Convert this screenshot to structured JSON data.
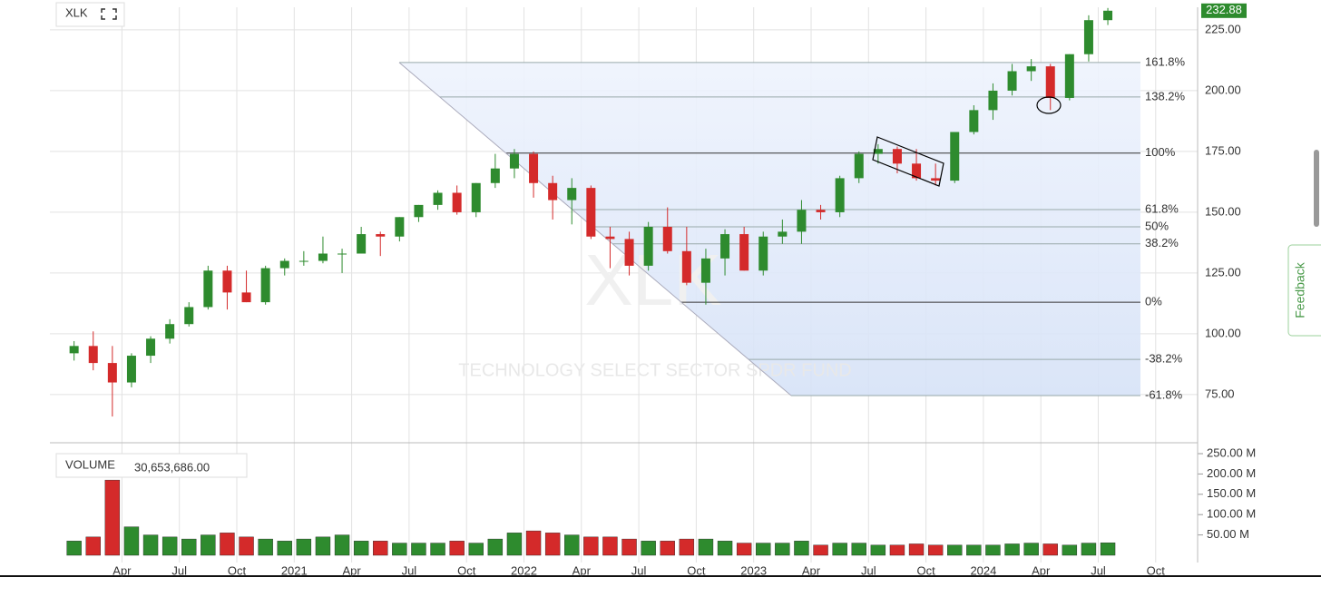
{
  "chart_data": {
    "type": "candlestick",
    "title": "XLK",
    "watermark": "XLK",
    "watermark_subtitle": "TECHNOLOGY SELECT SECTOR SPDR FUND",
    "feedback": "Feedback",
    "last_price": 232.88,
    "up_color": "#2e8b2e",
    "down_color": "#d42a2a",
    "x": [
      "2020-01",
      "2020-02",
      "2020-03",
      "2020-04",
      "2020-05",
      "2020-06",
      "2020-07",
      "2020-08",
      "2020-09",
      "2020-10",
      "2020-11",
      "2020-12",
      "2021-01",
      "2021-02",
      "2021-03",
      "2021-04",
      "2021-05",
      "2021-06",
      "2021-07",
      "2021-08",
      "2021-09",
      "2021-10",
      "2021-11",
      "2021-12",
      "2022-01",
      "2022-02",
      "2022-03",
      "2022-04",
      "2022-05",
      "2022-06",
      "2022-07",
      "2022-08",
      "2022-09",
      "2022-10",
      "2022-11",
      "2022-12",
      "2023-01",
      "2023-02",
      "2023-03",
      "2023-04",
      "2023-05",
      "2023-06",
      "2023-07",
      "2023-08",
      "2023-09",
      "2023-10",
      "2023-11",
      "2023-12",
      "2024-01",
      "2024-02",
      "2024-03",
      "2024-04",
      "2024-05",
      "2024-06",
      "2024-07"
    ],
    "open": [
      92,
      95,
      88,
      80,
      91,
      98,
      104,
      111,
      126,
      117,
      113,
      127,
      130,
      130,
      133,
      133,
      141,
      140,
      148,
      153,
      158,
      150,
      162,
      168,
      174,
      162,
      155,
      160,
      140,
      139,
      128,
      144,
      134,
      121,
      131,
      141,
      126,
      140,
      142,
      151,
      150,
      164,
      174,
      176,
      170,
      164,
      163,
      183,
      192,
      200,
      208,
      210,
      197,
      215,
      229
    ],
    "high": [
      97,
      101,
      95,
      92,
      99,
      106,
      113,
      128,
      128,
      126,
      128,
      131,
      134,
      140,
      135,
      144,
      142,
      148,
      153,
      159,
      161,
      162,
      174,
      176,
      175,
      165,
      164,
      161,
      144,
      142,
      146,
      152,
      144,
      135,
      143,
      144,
      142,
      147,
      155,
      153,
      165,
      175,
      178,
      177,
      176,
      170,
      183,
      194,
      203,
      211,
      213,
      211,
      215,
      231,
      234
    ],
    "low": [
      89,
      85,
      66,
      78,
      88,
      96,
      103,
      110,
      110,
      113,
      112,
      124,
      128,
      129,
      125,
      133,
      132,
      138,
      146,
      151,
      149,
      148,
      160,
      164,
      156,
      147,
      145,
      139,
      127,
      124,
      126,
      133,
      120,
      112,
      124,
      126,
      124,
      137,
      137,
      147,
      148,
      162,
      170,
      166,
      163,
      161,
      162,
      182,
      188,
      198,
      204,
      192,
      196,
      212,
      227
    ],
    "close": [
      95,
      88,
      80,
      91,
      98,
      104,
      111,
      126,
      117,
      113,
      127,
      130,
      130,
      133,
      133,
      141,
      140,
      148,
      153,
      158,
      150,
      162,
      168,
      174,
      162,
      155,
      160,
      140,
      139,
      128,
      144,
      134,
      121,
      131,
      141,
      126,
      140,
      142,
      151,
      150,
      164,
      174,
      176,
      170,
      164,
      163,
      183,
      192,
      200,
      208,
      210,
      197,
      215,
      229,
      232.88
    ],
    "ylim": [
      55.2,
      234.3
    ],
    "yticks": [
      {
        "value": 225,
        "label": "225.00"
      },
      {
        "value": 200,
        "label": "200.00"
      },
      {
        "value": 175,
        "label": "175.00"
      },
      {
        "value": 150,
        "label": "150.00"
      },
      {
        "value": 125,
        "label": "125.00"
      },
      {
        "value": 100,
        "label": "100.00"
      },
      {
        "value": 75,
        "label": "75.00"
      }
    ],
    "xlim": [
      "2019-12",
      "2024-12"
    ],
    "xticks": [
      {
        "value": "2020-04",
        "label": "Apr"
      },
      {
        "value": "2020-07",
        "label": "Jul"
      },
      {
        "value": "2020-10",
        "label": "Oct"
      },
      {
        "value": "2021-01",
        "label": "2021"
      },
      {
        "value": "2021-04",
        "label": "Apr"
      },
      {
        "value": "2021-07",
        "label": "Jul"
      },
      {
        "value": "2021-10",
        "label": "Oct"
      },
      {
        "value": "2022-01",
        "label": "2022"
      },
      {
        "value": "2022-04",
        "label": "Apr"
      },
      {
        "value": "2022-07",
        "label": "Jul"
      },
      {
        "value": "2022-10",
        "label": "Oct"
      },
      {
        "value": "2023-01",
        "label": "2023"
      },
      {
        "value": "2023-04",
        "label": "Apr"
      },
      {
        "value": "2023-07",
        "label": "Jul"
      },
      {
        "value": "2023-10",
        "label": "Oct"
      },
      {
        "value": "2024-01",
        "label": "2024"
      },
      {
        "value": "2024-04",
        "label": "Apr"
      },
      {
        "value": "2024-07",
        "label": "Jul"
      },
      {
        "value": "2024-10",
        "label": "Oct"
      }
    ],
    "fib_levels": [
      {
        "label": "161.8%",
        "value": 211.6
      },
      {
        "label": "138.2%",
        "value": 197.4
      },
      {
        "label": "100%",
        "value": 174.3
      },
      {
        "label": "61.8%",
        "value": 151.1
      },
      {
        "label": "50%",
        "value": 144
      },
      {
        "label": "38.2%",
        "value": 137
      },
      {
        "label": "0%",
        "value": 113
      },
      {
        "label": "-38.2%",
        "value": 89.5
      },
      {
        "label": "-61.8%",
        "value": 74.6
      }
    ],
    "volume": {
      "label": "VOLUME",
      "last": {
        "value": 30653686,
        "label": "30,653,686.00"
      },
      "values": [
        35000000,
        45000000,
        185000000,
        70000000,
        50000000,
        45000000,
        40000000,
        50000000,
        55000000,
        45000000,
        40000000,
        35000000,
        40000000,
        45000000,
        50000000,
        35000000,
        35000000,
        30000000,
        30000000,
        30000000,
        35000000,
        30000000,
        40000000,
        55000000,
        60000000,
        55000000,
        50000000,
        45000000,
        45000000,
        40000000,
        35000000,
        35000000,
        40000000,
        40000000,
        35000000,
        30000000,
        30000000,
        30000000,
        35000000,
        25000000,
        30000000,
        30000000,
        25000000,
        25000000,
        28000000,
        25000000,
        25000000,
        25000000,
        25000000,
        28000000,
        30000000,
        28000000,
        25000000,
        30000000,
        30653686
      ],
      "ylim": [
        0,
        272300000
      ],
      "yticks": [
        {
          "value": 250000000,
          "label": "250.00 M"
        },
        {
          "value": 200000000,
          "label": "200.00 M"
        },
        {
          "value": 150000000,
          "label": "150.00 M"
        },
        {
          "value": 100000000,
          "label": "100.00 M"
        },
        {
          "value": 50000000,
          "label": "50.00 M"
        }
      ]
    }
  }
}
